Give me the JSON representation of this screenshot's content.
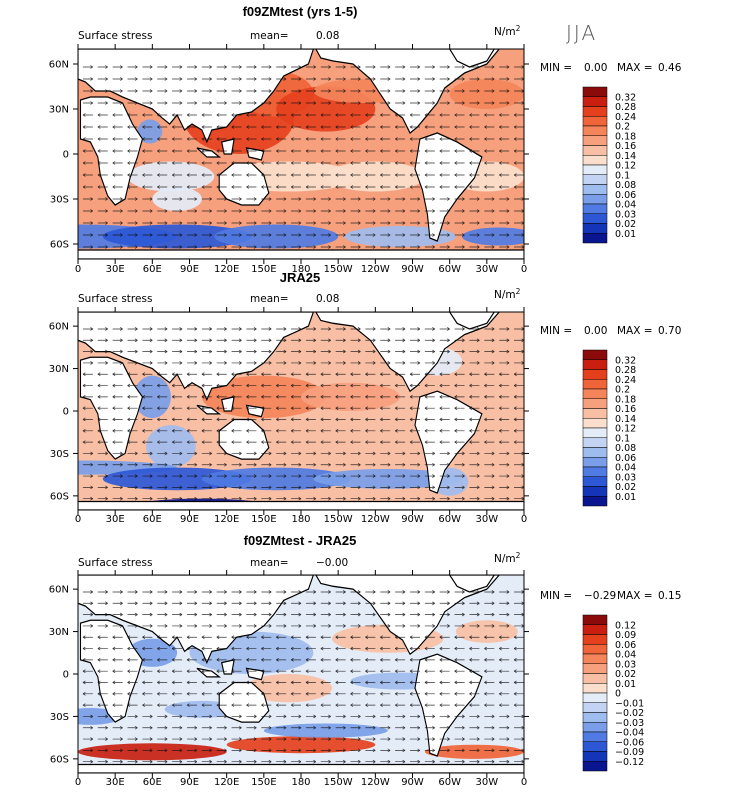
{
  "season": "JJA",
  "chart_data": [
    {
      "type": "heatmap",
      "title": "f09ZMtest (yrs 1-5)",
      "left_label": "Surface stress",
      "mean_label": "mean=",
      "mean_value": "0.08",
      "units": "N/m",
      "units_exp": "2",
      "min_label": "MIN =",
      "min_value": "0.00",
      "max_label": "MAX =",
      "max_value": "0.46",
      "levels": [
        "0.32",
        "0.28",
        "0.24",
        "0.2",
        "0.18",
        "0.16",
        "0.14",
        "0.12",
        "0.1",
        "0.08",
        "0.06",
        "0.04",
        "0.03",
        "0.02",
        "0.01"
      ],
      "palette": [
        "#8b0a0a",
        "#c81f10",
        "#e5401d",
        "#ef6438",
        "#f4845a",
        "#f7a07e",
        "#f8bfa4",
        "#fbdfcc",
        "#e4ecf8",
        "#c3d4f2",
        "#9fbcee",
        "#7a9ee8",
        "#4f7be2",
        "#2c58d6",
        "#1535b8",
        "#0a1590"
      ],
      "x_ticks": [
        "0",
        "30E",
        "60E",
        "90E",
        "120E",
        "150E",
        "180",
        "150W",
        "120W",
        "90W",
        "60W",
        "30W",
        "0"
      ],
      "y_ticks": [
        "60N",
        "30N",
        "0",
        "30S",
        "60S"
      ],
      "y_values": [
        60,
        30,
        0,
        -30,
        -60
      ],
      "ylim": [
        -70,
        70
      ],
      "xlim": [
        0,
        360
      ],
      "base_level": 5,
      "blobs": [
        [
          0,
          130,
          25,
          45,
          25,
          2
        ],
        [
          0,
          160,
          40,
          30,
          15,
          3
        ],
        [
          0,
          200,
          30,
          40,
          15,
          2
        ],
        [
          0,
          75,
          -15,
          35,
          10,
          8
        ],
        [
          0,
          80,
          -30,
          20,
          8,
          8
        ],
        [
          0,
          170,
          -15,
          55,
          10,
          7
        ],
        [
          0,
          240,
          -15,
          40,
          10,
          7
        ],
        [
          0,
          330,
          -15,
          30,
          10,
          7
        ],
        [
          0,
          58,
          15,
          10,
          8,
          11
        ],
        [
          0,
          0,
          -55,
          80,
          8,
          12
        ],
        [
          0,
          80,
          -55,
          60,
          8,
          13
        ],
        [
          0,
          160,
          -55,
          50,
          8,
          12
        ],
        [
          0,
          260,
          -55,
          45,
          7,
          10
        ],
        [
          0,
          340,
          -55,
          30,
          6,
          12
        ],
        [
          0,
          230,
          42,
          40,
          8,
          4
        ],
        [
          0,
          330,
          40,
          30,
          10,
          4
        ]
      ]
    },
    {
      "type": "heatmap",
      "title": "JRA25",
      "left_label": "Surface stress",
      "mean_label": "mean=",
      "mean_value": "0.08",
      "units": "N/m",
      "units_exp": "2",
      "min_label": "MIN =",
      "min_value": "0.00",
      "max_label": "MAX =",
      "max_value": "0.70",
      "levels": [
        "0.32",
        "0.28",
        "0.24",
        "0.2",
        "0.18",
        "0.16",
        "0.14",
        "0.12",
        "0.1",
        "0.08",
        "0.06",
        "0.04",
        "0.03",
        "0.02",
        "0.01"
      ],
      "palette": [
        "#8b0a0a",
        "#c81f10",
        "#e5401d",
        "#ef6438",
        "#f4845a",
        "#f7a07e",
        "#f8bfa4",
        "#fbdfcc",
        "#e4ecf8",
        "#c3d4f2",
        "#9fbcee",
        "#7a9ee8",
        "#4f7be2",
        "#2c58d6",
        "#1535b8",
        "#0a1590"
      ],
      "x_ticks": [
        "0",
        "30E",
        "60E",
        "90E",
        "120E",
        "150E",
        "180",
        "150W",
        "120W",
        "90W",
        "60W",
        "30W",
        "0"
      ],
      "y_ticks": [
        "60N",
        "30N",
        "0",
        "30S",
        "60S"
      ],
      "y_values": [
        60,
        30,
        0,
        -30,
        -60
      ],
      "ylim": [
        -70,
        70
      ],
      "xlim": [
        0,
        360
      ],
      "base_level": 6,
      "blobs": [
        [
          0,
          150,
          10,
          50,
          15,
          4
        ],
        [
          0,
          220,
          10,
          40,
          10,
          5
        ],
        [
          0,
          60,
          10,
          15,
          15,
          11
        ],
        [
          0,
          75,
          -25,
          20,
          15,
          10
        ],
        [
          0,
          0,
          -40,
          80,
          5,
          11
        ],
        [
          0,
          80,
          -48,
          60,
          8,
          13
        ],
        [
          0,
          160,
          -48,
          60,
          8,
          12
        ],
        [
          0,
          250,
          -48,
          60,
          7,
          11
        ],
        [
          0,
          100,
          -66,
          50,
          4,
          15
        ],
        [
          0,
          285,
          -10,
          10,
          20,
          10
        ],
        [
          0,
          300,
          -50,
          15,
          10,
          10
        ],
        [
          0,
          290,
          35,
          20,
          10,
          8
        ]
      ]
    },
    {
      "type": "heatmap",
      "title": "f09ZMtest - JRA25",
      "left_label": "Surface stress",
      "mean_label": "mean=",
      "mean_value": "−0.00",
      "units": "N/m",
      "units_exp": "2",
      "min_label": "MIN =",
      "min_value": "−0.29",
      "max_label": "MAX =",
      "max_value": "0.15",
      "levels": [
        "0.12",
        "0.09",
        "0.06",
        "0.04",
        "0.03",
        "0.02",
        "0.01",
        "0",
        "−0.01",
        "−0.02",
        "−0.03",
        "−0.04",
        "−0.06",
        "−0.09",
        "−0.12"
      ],
      "palette": [
        "#8b0a0a",
        "#c81f10",
        "#e5401d",
        "#ef6438",
        "#f4845a",
        "#f7a07e",
        "#f8bfa4",
        "#fbdfcc",
        "#e4ecf8",
        "#c3d4f2",
        "#9fbcee",
        "#7a9ee8",
        "#4f7be2",
        "#2c58d6",
        "#1535b8",
        "#0a1590"
      ],
      "x_ticks": [
        "0",
        "30E",
        "60E",
        "90E",
        "120E",
        "150E",
        "180",
        "150W",
        "120W",
        "90W",
        "60W",
        "30W",
        "0"
      ],
      "y_ticks": [
        "60N",
        "30N",
        "0",
        "30S",
        "60S"
      ],
      "y_values": [
        60,
        30,
        0,
        -30,
        -60
      ],
      "ylim": [
        -70,
        70
      ],
      "xlim": [
        0,
        360
      ],
      "base_level": 8,
      "blobs": [
        [
          0,
          140,
          15,
          50,
          15,
          10
        ],
        [
          0,
          170,
          -10,
          35,
          10,
          6
        ],
        [
          0,
          250,
          25,
          45,
          10,
          6
        ],
        [
          0,
          60,
          15,
          20,
          10,
          11
        ],
        [
          0,
          330,
          30,
          25,
          8,
          6
        ],
        [
          0,
          60,
          -55,
          60,
          6,
          1
        ],
        [
          0,
          180,
          -50,
          60,
          6,
          2
        ],
        [
          0,
          320,
          -55,
          40,
          5,
          3
        ],
        [
          0,
          200,
          -40,
          50,
          5,
          11
        ],
        [
          0,
          10,
          -30,
          25,
          6,
          11
        ],
        [
          0,
          100,
          -25,
          30,
          6,
          10
        ],
        [
          0,
          260,
          -5,
          40,
          6,
          10
        ]
      ]
    }
  ]
}
